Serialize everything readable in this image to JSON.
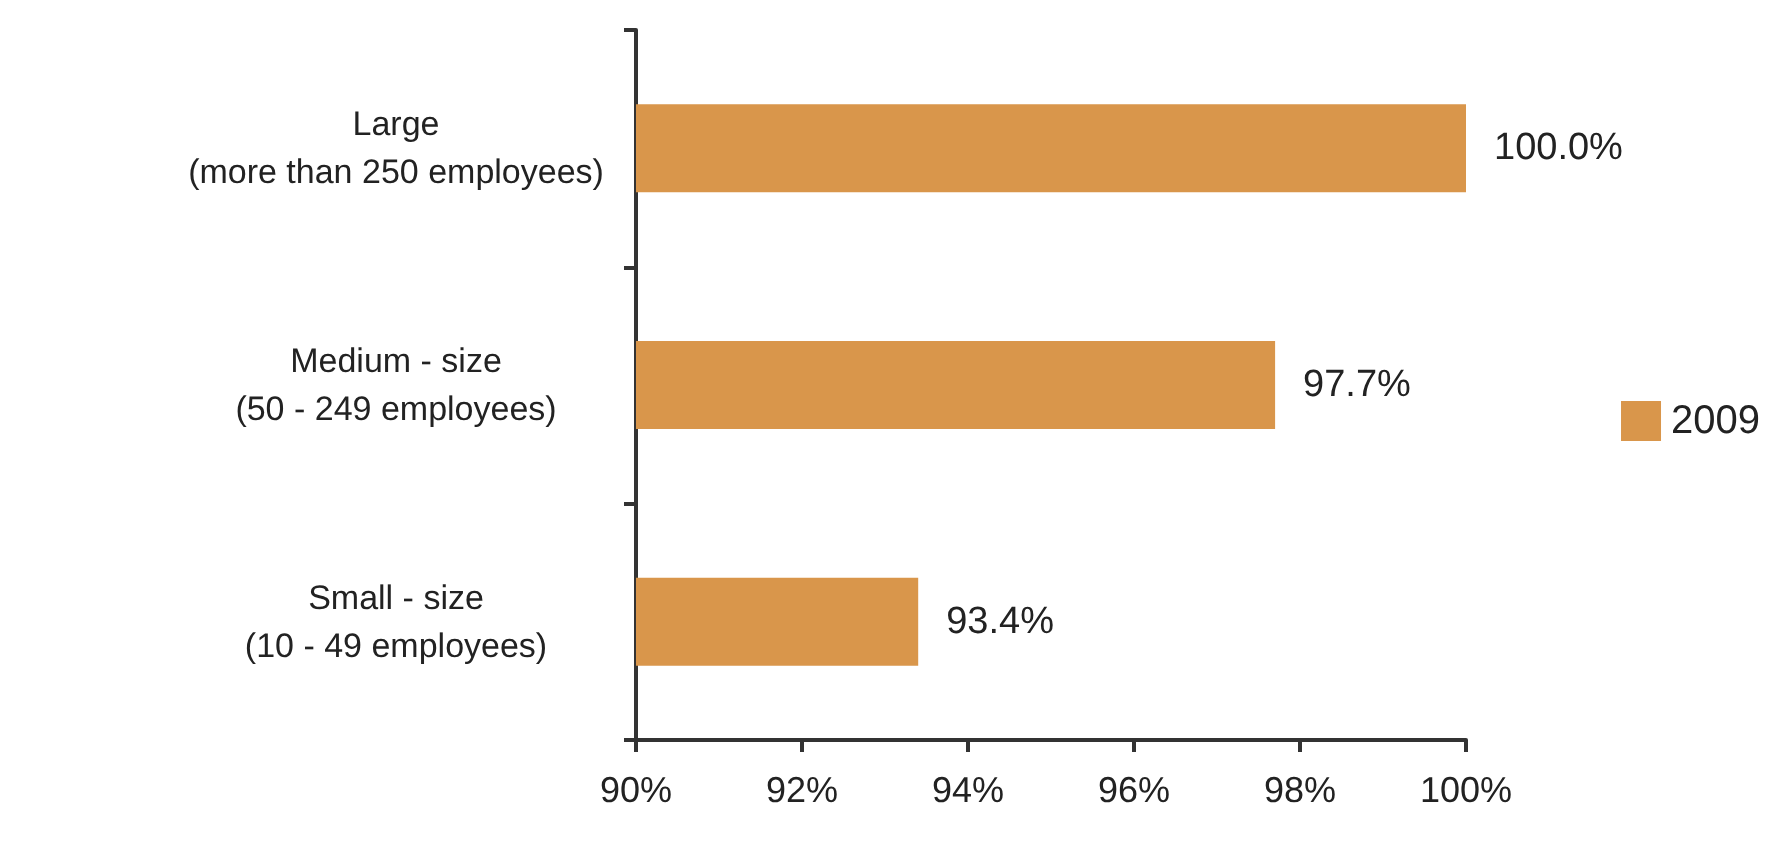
{
  "chart_data": {
    "type": "bar",
    "orientation": "horizontal",
    "categories": [
      "Large\n(more than 250 employees)",
      "Medium - size\n(50 - 249 employees)",
      "Small - size\n(10 - 49 employees)"
    ],
    "series": [
      {
        "name": "2009",
        "color": "#d9964b",
        "values": [
          100.0,
          97.7,
          93.4
        ],
        "value_labels": [
          "100.0%",
          "97.7%",
          "93.4%"
        ]
      }
    ],
    "xlim": [
      90,
      100
    ],
    "xticks": [
      {
        "value": 90,
        "label": "90%"
      },
      {
        "value": 92,
        "label": "92%"
      },
      {
        "value": 94,
        "label": "94%"
      },
      {
        "value": 96,
        "label": "96%"
      },
      {
        "value": 98,
        "label": "98%"
      },
      {
        "value": 100,
        "label": "100%"
      }
    ],
    "grid": false,
    "legend": "right"
  }
}
